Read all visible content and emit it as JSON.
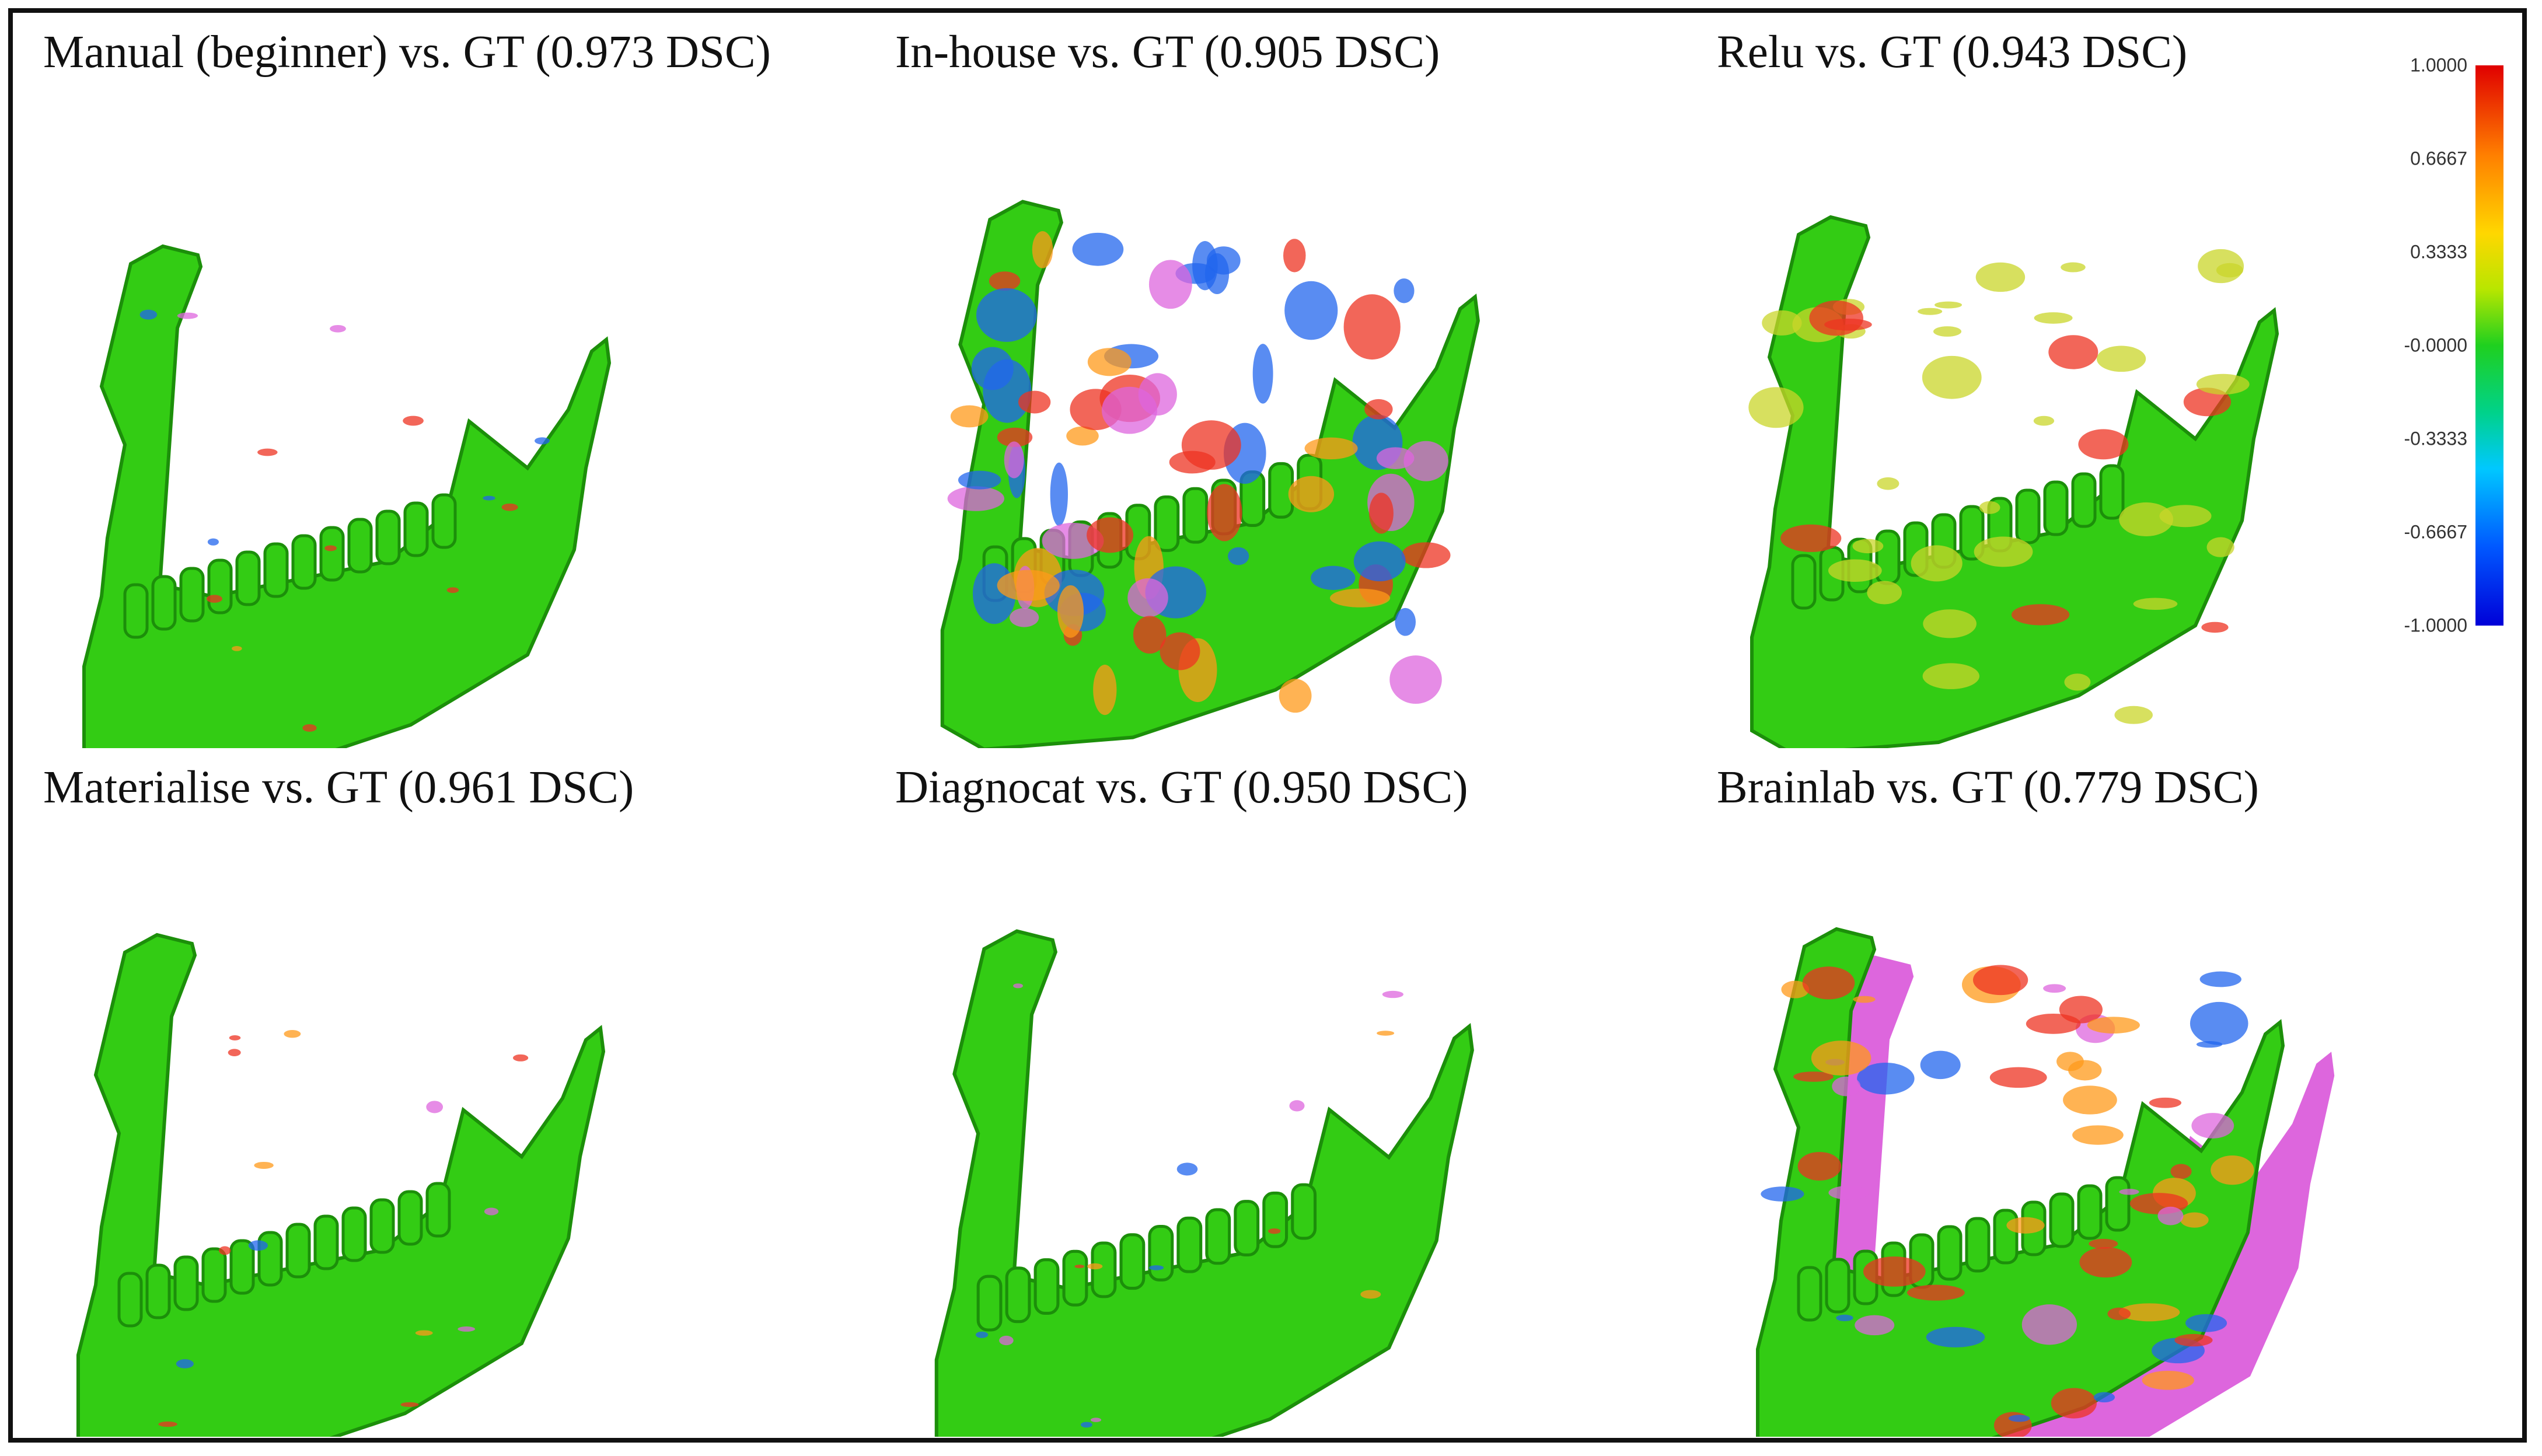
{
  "figure": {
    "panels": [
      {
        "caption": "Manual (beginner) vs. GT (0.973 DSC)",
        "method": "Manual (beginner)",
        "dsc": 0.973
      },
      {
        "caption": "In-house vs. GT (0.905 DSC)",
        "method": "In-house",
        "dsc": 0.905
      },
      {
        "caption": "Relu vs. GT (0.943 DSC)",
        "method": "Relu",
        "dsc": 0.943
      },
      {
        "caption": "Materialise vs. GT (0.961 DSC)",
        "method": "Materialise",
        "dsc": 0.961
      },
      {
        "caption": "Diagnocat vs. GT (0.950 DSC)",
        "method": "Diagnocat",
        "dsc": 0.95
      },
      {
        "caption": "Brainlab vs. GT (0.779 DSC)",
        "method": "Brainlab",
        "dsc": 0.779
      }
    ],
    "colorbar": {
      "ticks": [
        "1.0000",
        "0.6667",
        "0.3333",
        "-0.0000",
        "-0.3333",
        "-0.6667",
        "-1.0000"
      ],
      "range": [
        -1.0,
        1.0
      ],
      "colors": {
        "max": "#e00000",
        "high": "#ff7f00",
        "mid_high": "#ffd700",
        "zero": "#1fd01f",
        "mid_low": "#00c8ff",
        "low": "#0058ff",
        "min": "#0000d8"
      }
    },
    "surface_colors": {
      "bone": "#33cc14",
      "bone_shadow": "#1c8f0a",
      "overshoot": "#dd66dd",
      "positive": "#ee3322",
      "negative": "#2266ee"
    }
  }
}
